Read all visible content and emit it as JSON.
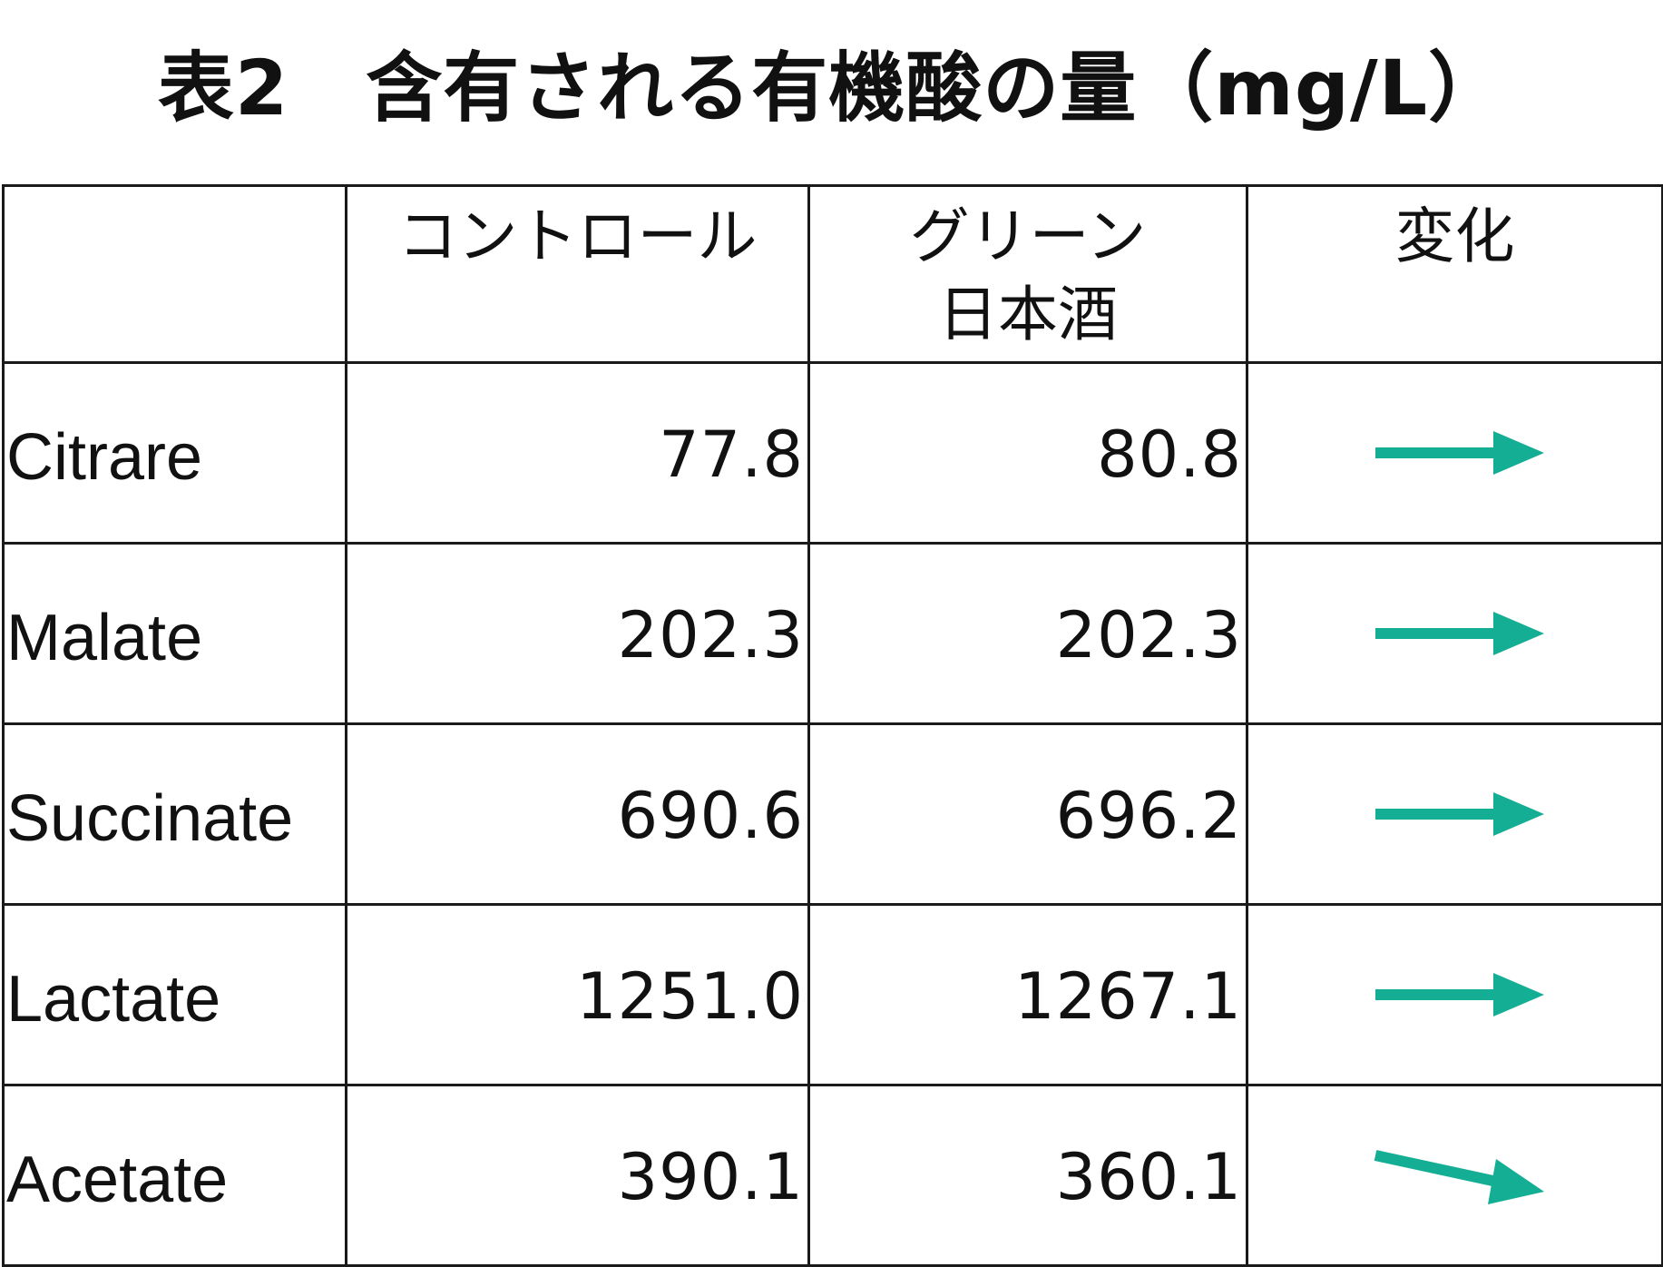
{
  "title": "表2　含有される有機酸の量（mg/L）",
  "accent_color": "#13AE93",
  "headers": [
    "",
    "コントロール",
    "グリーン\n日本酒",
    "変化"
  ],
  "rows": [
    {
      "name": "Citrare",
      "control": "77.8",
      "green": "80.8",
      "change": "flat-arrow-icon"
    },
    {
      "name": "Malate",
      "control": "202.3",
      "green": "202.3",
      "change": "flat-arrow-icon"
    },
    {
      "name": "Succinate",
      "control": "690.6",
      "green": "696.2",
      "change": "flat-arrow-icon"
    },
    {
      "name": "Lactate",
      "control": "1251.0",
      "green": "1267.1",
      "change": "flat-arrow-icon"
    },
    {
      "name": "Acetate",
      "control": "390.1",
      "green": "360.1",
      "change": "down-arrow-icon"
    }
  ]
}
